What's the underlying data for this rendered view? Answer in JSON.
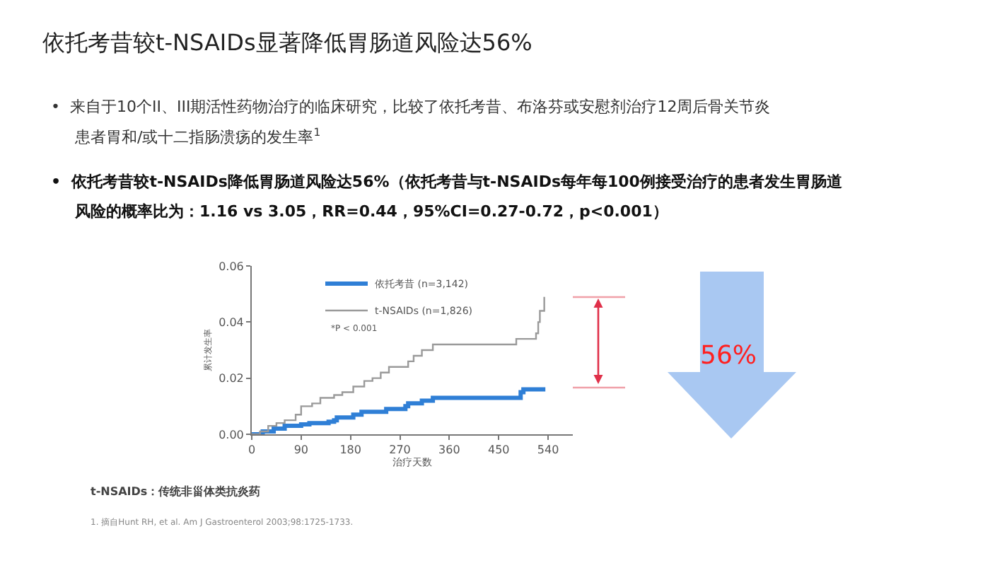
{
  "chart_data": {
    "type": "step",
    "title": "依托考昔较t-NSAIDs显著降低胃肠道风险达56%",
    "xlabel": "治疗天数",
    "ylabel": "累计发生率",
    "xlim": [
      0,
      585
    ],
    "xticks": [
      0,
      90,
      180,
      270,
      360,
      450,
      540
    ],
    "ylim": [
      0,
      0.06
    ],
    "yticks": [
      {
        "value": 0,
        "label": "0.00"
      },
      {
        "value": 0.02,
        "label": "0.02"
      },
      {
        "value": 0.04,
        "label": "0.04"
      },
      {
        "value": 0.06,
        "label": "0.06"
      }
    ],
    "legend": "top",
    "marker": "none",
    "line_style": "solid",
    "series": [
      {
        "name": "依托考昔 (n=3,142)",
        "color": "#2f7fd6",
        "x": [
          0,
          20,
          40,
          60,
          90,
          105,
          140,
          150,
          155,
          185,
          200,
          245,
          280,
          285,
          310,
          330,
          480,
          490,
          495,
          535
        ],
        "values": [
          0,
          0.001,
          0.002,
          0.003,
          0.0035,
          0.004,
          0.0045,
          0.005,
          0.006,
          0.007,
          0.008,
          0.009,
          0.01,
          0.011,
          0.012,
          0.013,
          0.013,
          0.015,
          0.016,
          0.016
        ]
      },
      {
        "name": "t-NSAIDs (n=1,826)",
        "color": "#9a9a9a",
        "x": [
          0,
          15,
          30,
          45,
          60,
          80,
          90,
          110,
          125,
          150,
          165,
          185,
          205,
          220,
          235,
          250,
          285,
          295,
          310,
          330,
          482,
          518,
          522,
          525,
          533
        ],
        "values": [
          0,
          0.001,
          0.003,
          0.004,
          0.005,
          0.007,
          0.01,
          0.011,
          0.013,
          0.014,
          0.015,
          0.017,
          0.019,
          0.02,
          0.022,
          0.024,
          0.026,
          0.028,
          0.03,
          0.032,
          0.034,
          0.036,
          0.04,
          0.044,
          0.049
        ]
      }
    ],
    "annotations": [
      "•  来自于10个II、III期活性药物治疗的临床研究，比较了依托考昔、布洛芬或安慰剂治疗12周后骨关节炎",
      "患者胃和/或十二指肠溃疡的发生率$^{1}$",
      "•  依托考昔较t-NSAIDs降低胃肠道风险达56%（依托考昔与t-NSAIDs每年每100例接受治疗的患者发生胃肠道",
      "风险的概率比为：1.16 vs 3.05，RR=0.44，95%CI=0.27-0.72，p<0.001）",
      "*P < 0.001",
      "56%",
      "t-NSAIDs：传统非甾体类抗炎药",
      "1. 摘自Hunt RH, et al. Am J Gastroenterol 2003;98:1725-1733."
    ]
  }
}
